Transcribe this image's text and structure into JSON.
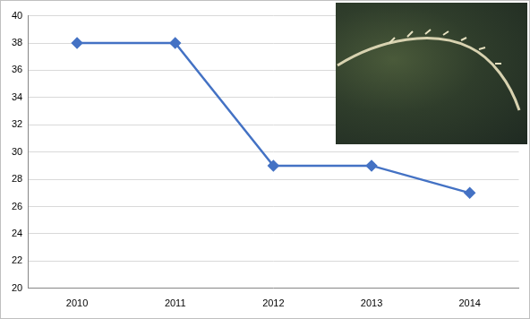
{
  "chart_data": {
    "type": "line",
    "categories": [
      "2010",
      "2011",
      "2012",
      "2013",
      "2014"
    ],
    "values": [
      38,
      38,
      29,
      29,
      27
    ],
    "color": "#4472c4",
    "marker": "diamond",
    "line_style": "solid",
    "ylim": [
      20,
      40
    ],
    "yticks": [
      20,
      22,
      24,
      26,
      28,
      30,
      32,
      34,
      36,
      38,
      40
    ],
    "grid": true
  }
}
